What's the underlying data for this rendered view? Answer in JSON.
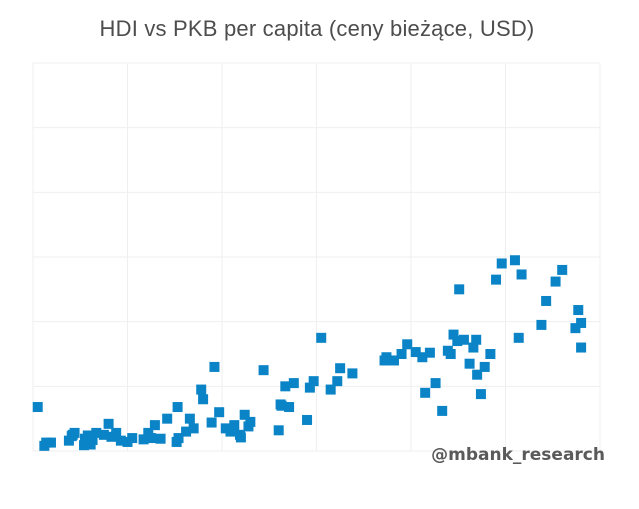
{
  "title": "HDI vs PKB per capita (ceny bieżące, USD)",
  "watermark": "@mbank_research",
  "colors": {
    "marker": "#0a84c6",
    "grid": "#efefef",
    "title": "#4d4d4d",
    "watermark": "#5a5a5a"
  },
  "chart_data": {
    "type": "scatter",
    "title": "HDI vs PKB per capita (ceny bieżące, USD)",
    "xlabel": "",
    "ylabel": "",
    "xlim": [
      0,
      6
    ],
    "ylim": [
      0,
      6
    ],
    "grid": true,
    "legend": "none",
    "marker": "square",
    "x": [
      0.05,
      0.12,
      0.14,
      0.19,
      0.38,
      0.41,
      0.42,
      0.44,
      0.54,
      0.55,
      0.58,
      0.61,
      0.63,
      0.67,
      0.75,
      0.8,
      0.83,
      0.88,
      0.93,
      1.0,
      1.05,
      1.17,
      1.22,
      1.25,
      1.29,
      1.35,
      1.42,
      1.52,
      1.53,
      1.54,
      1.62,
      1.66,
      1.7,
      1.78,
      1.8,
      1.89,
      1.92,
      1.97,
      2.04,
      2.09,
      2.13,
      2.19,
      2.2,
      2.24,
      2.28,
      2.3,
      2.44,
      2.6,
      2.62,
      2.63,
      2.67,
      2.71,
      2.76,
      2.9,
      2.93,
      2.97,
      3.05,
      3.15,
      3.22,
      3.25,
      3.38,
      3.72,
      3.74,
      3.82,
      3.9,
      3.96,
      4.05,
      4.12,
      4.15,
      4.2,
      4.26,
      4.33,
      4.39,
      4.42,
      4.45,
      4.49,
      4.51,
      4.56,
      4.62,
      4.66,
      4.69,
      4.7,
      4.74,
      4.78,
      4.84,
      4.9,
      4.96,
      5.1,
      5.14,
      5.17,
      5.38,
      5.43,
      5.53,
      5.6,
      5.74,
      5.77,
      5.8,
      5.8
    ],
    "y": [
      0.68,
      0.08,
      0.13,
      0.13,
      0.16,
      0.23,
      0.25,
      0.28,
      0.09,
      0.19,
      0.24,
      0.1,
      0.17,
      0.28,
      0.25,
      0.42,
      0.22,
      0.28,
      0.16,
      0.14,
      0.2,
      0.18,
      0.28,
      0.2,
      0.4,
      0.19,
      0.5,
      0.14,
      0.68,
      0.2,
      0.3,
      0.5,
      0.35,
      0.95,
      0.8,
      0.44,
      1.3,
      0.6,
      0.35,
      0.3,
      0.4,
      0.25,
      0.21,
      0.56,
      0.38,
      0.45,
      1.25,
      0.32,
      0.72,
      0.7,
      1.0,
      0.68,
      1.05,
      0.48,
      0.98,
      1.08,
      1.75,
      0.95,
      1.08,
      1.28,
      1.2,
      1.4,
      1.45,
      1.4,
      1.5,
      1.65,
      1.53,
      1.45,
      0.9,
      1.52,
      1.05,
      0.62,
      1.55,
      1.5,
      1.8,
      1.7,
      2.5,
      1.72,
      1.35,
      1.6,
      1.72,
      1.18,
      0.88,
      1.3,
      1.5,
      2.65,
      2.9,
      2.95,
      1.75,
      2.73,
      1.95,
      2.32,
      2.62,
      2.8,
      1.9,
      2.18,
      1.6,
      1.98
    ]
  }
}
